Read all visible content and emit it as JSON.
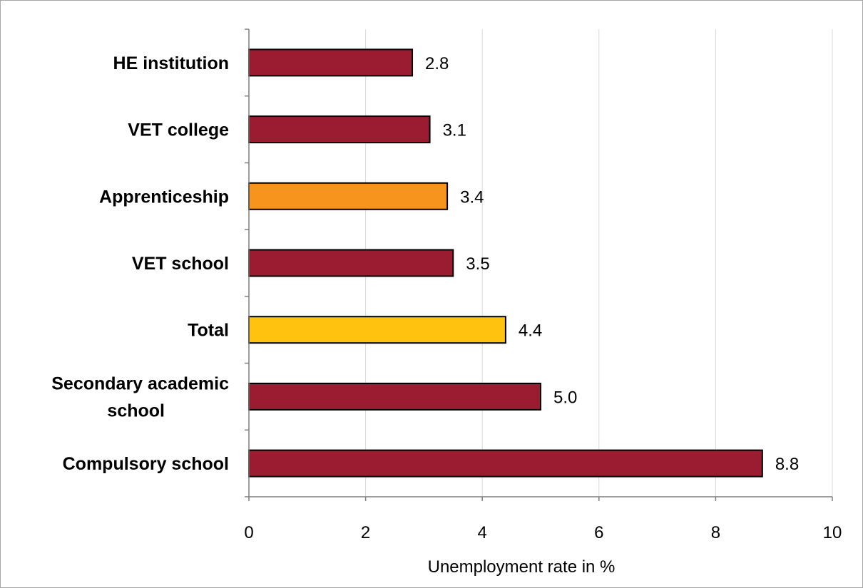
{
  "chart_data": {
    "type": "bar",
    "orientation": "horizontal",
    "categories": [
      "HE institution",
      "VET college",
      "Apprenticeship",
      "VET school",
      "Total",
      "Secondary academic school",
      "Compulsory school"
    ],
    "values": [
      2.8,
      3.1,
      3.4,
      3.5,
      4.4,
      5.0,
      8.8
    ],
    "data_labels": [
      "2.8",
      "3.1",
      "3.4",
      "3.5",
      "4.4",
      "5.0",
      "8.8"
    ],
    "bar_colors": [
      "#9b1b30",
      "#9b1b30",
      "#f7941d",
      "#9b1b30",
      "#ffc20e",
      "#9b1b30",
      "#9b1b30"
    ],
    "xlabel": "Unemployment rate in %",
    "ylabel": "",
    "title": "",
    "xlim": [
      0,
      10
    ],
    "x_ticks": [
      0,
      2,
      4,
      6,
      8,
      10
    ],
    "grid": "vertical",
    "legend": "none"
  },
  "colors": {
    "grid": "#d9d9d9",
    "axis": "#7f7f7f",
    "bar_border": "#000000"
  }
}
